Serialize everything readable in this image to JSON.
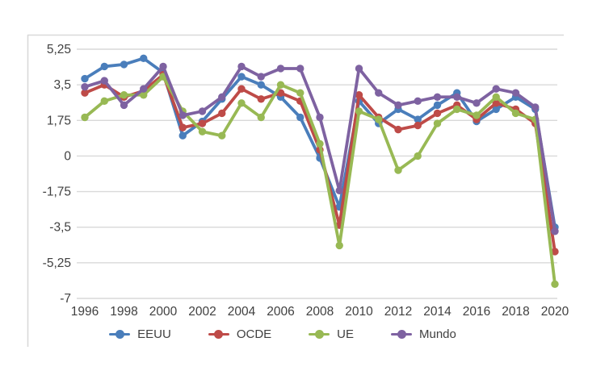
{
  "chart_data": {
    "type": "line",
    "title": "",
    "xlabel": "",
    "ylabel": "",
    "x": [
      1996,
      1997,
      1998,
      1999,
      2000,
      2001,
      2002,
      2003,
      2004,
      2005,
      2006,
      2007,
      2008,
      2009,
      2010,
      2011,
      2012,
      2013,
      2014,
      2015,
      2016,
      2017,
      2018,
      2019,
      2020
    ],
    "x_tick_labels": [
      "1996",
      "1998",
      "2000",
      "2002",
      "2004",
      "2006",
      "2008",
      "2010",
      "2012",
      "2014",
      "2016",
      "2018",
      "2020"
    ],
    "y_tick_labels": [
      "5,25",
      "3,5",
      "1,75",
      "0",
      "-1,75",
      "-3,5",
      "-5,25",
      "-7"
    ],
    "y_tick_values": [
      5.25,
      3.5,
      1.75,
      0,
      -1.75,
      -3.5,
      -5.25,
      -7
    ],
    "ylim": [
      -7,
      5.25
    ],
    "grid": true,
    "legend_position": "bottom",
    "series": [
      {
        "name": "EEUU",
        "color": "#4a7ebb",
        "values": [
          3.8,
          4.4,
          4.5,
          4.8,
          4.1,
          1.0,
          1.7,
          2.8,
          3.9,
          3.5,
          2.9,
          1.9,
          -0.1,
          -2.5,
          2.7,
          1.6,
          2.3,
          1.8,
          2.5,
          3.1,
          1.7,
          2.3,
          2.9,
          2.3,
          -3.5
        ]
      },
      {
        "name": "OCDE",
        "color": "#be4b48",
        "values": [
          3.1,
          3.5,
          2.9,
          3.2,
          4.0,
          1.4,
          1.6,
          2.1,
          3.3,
          2.8,
          3.1,
          2.7,
          0.3,
          -3.4,
          3.0,
          1.9,
          1.3,
          1.5,
          2.1,
          2.5,
          1.8,
          2.6,
          2.3,
          1.6,
          -4.7
        ]
      },
      {
        "name": "UE",
        "color": "#98b954",
        "values": [
          1.9,
          2.7,
          3.0,
          3.0,
          3.9,
          2.2,
          1.2,
          1.0,
          2.6,
          1.9,
          3.5,
          3.1,
          0.6,
          -4.4,
          2.2,
          1.8,
          -0.7,
          0.0,
          1.6,
          2.3,
          2.0,
          2.9,
          2.1,
          1.8,
          -6.3
        ]
      },
      {
        "name": "Mundo",
        "color": "#7e62a1",
        "values": [
          3.4,
          3.7,
          2.5,
          3.3,
          4.4,
          2.0,
          2.2,
          2.9,
          4.4,
          3.9,
          4.3,
          4.3,
          1.9,
          -1.7,
          4.3,
          3.1,
          2.5,
          2.7,
          2.9,
          2.9,
          2.6,
          3.3,
          3.1,
          2.4,
          -3.7
        ]
      }
    ]
  },
  "style": {
    "grid_color": "#d9d9d9",
    "border_color": "#d9d9d9",
    "text_color": "#404040",
    "background": "#ffffff"
  }
}
